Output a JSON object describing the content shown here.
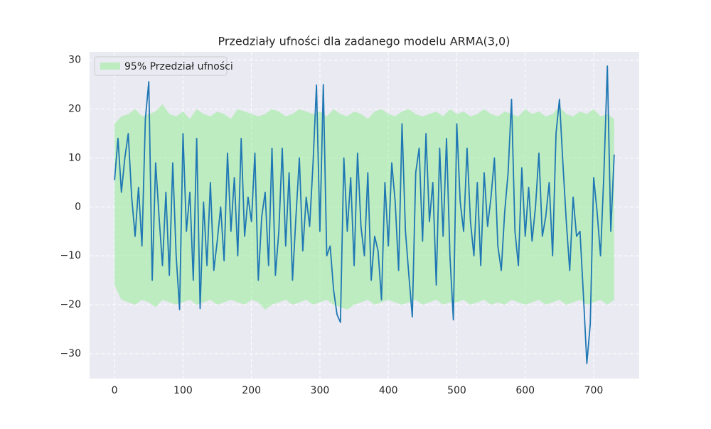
{
  "chart_data": {
    "type": "line",
    "title": "Przedziały ufności dla zadanego modelu ARMA(3,0)",
    "x": [
      0,
      5,
      10,
      15,
      20,
      25,
      30,
      35,
      40,
      45,
      50,
      55,
      60,
      65,
      70,
      75,
      80,
      85,
      90,
      95,
      100,
      105,
      110,
      115,
      120,
      125,
      130,
      135,
      140,
      145,
      150,
      155,
      160,
      165,
      170,
      175,
      180,
      185,
      190,
      195,
      200,
      205,
      210,
      215,
      220,
      225,
      230,
      235,
      240,
      245,
      250,
      255,
      260,
      265,
      270,
      275,
      280,
      285,
      290,
      295,
      300,
      305,
      310,
      315,
      320,
      325,
      330,
      335,
      340,
      345,
      350,
      355,
      360,
      365,
      370,
      375,
      380,
      385,
      390,
      395,
      400,
      405,
      410,
      415,
      420,
      425,
      430,
      435,
      440,
      445,
      450,
      455,
      460,
      465,
      470,
      475,
      480,
      485,
      490,
      495,
      500,
      505,
      510,
      515,
      520,
      525,
      530,
      535,
      540,
      545,
      550,
      555,
      560,
      565,
      570,
      575,
      580,
      585,
      590,
      595,
      600,
      605,
      610,
      615,
      620,
      625,
      630,
      635,
      640,
      645,
      650,
      655,
      660,
      665,
      670,
      675,
      680,
      685,
      690,
      695,
      700,
      705,
      710,
      715,
      720,
      725,
      730
    ],
    "values": [
      5.5,
      14,
      3,
      10,
      15,
      2,
      -6,
      4,
      -8,
      18,
      25.6,
      -15,
      9,
      -2,
      -12,
      3,
      -14,
      9,
      -10,
      -21,
      15,
      -5,
      3,
      -15,
      14,
      -20.8,
      1,
      -12,
      5,
      -13,
      -7,
      0,
      -11,
      11,
      -5,
      6,
      -10,
      14,
      -6,
      2,
      -3,
      11,
      -15,
      -2,
      3,
      -12,
      12,
      -14,
      -5,
      12,
      -8,
      7,
      -15,
      -2,
      10,
      -9,
      2,
      -4,
      9,
      24.9,
      -5,
      25,
      -10,
      -8,
      -17,
      -22,
      -23.6,
      10,
      -5,
      6,
      -12,
      11,
      -4,
      -10,
      7,
      -15,
      -6,
      -9,
      -19,
      5,
      -8,
      9,
      1,
      -13,
      17,
      -5,
      -14,
      -22.5,
      7,
      12,
      -7,
      15,
      -3,
      5,
      -16,
      12,
      -6,
      14,
      -10,
      -23.1,
      17,
      1,
      -5,
      12,
      -3,
      -10,
      5,
      -12,
      7,
      -4,
      2,
      10,
      -8,
      -13,
      -1,
      7,
      22,
      -5,
      -12,
      8,
      -6,
      4,
      -7,
      0,
      11,
      -6,
      -2,
      5,
      -10,
      15,
      22,
      9,
      -3,
      -13,
      2,
      -6,
      -5,
      -18,
      -32,
      -24,
      6,
      -1,
      -10,
      7,
      28.8,
      -5,
      10.7
    ],
    "color": "#1f77b4",
    "band": {
      "name": "95% Przedział ufności",
      "color": "#90ee90",
      "x": [
        0,
        10,
        20,
        30,
        40,
        50,
        60,
        70,
        80,
        90,
        100,
        110,
        120,
        130,
        140,
        150,
        160,
        170,
        180,
        190,
        200,
        210,
        220,
        230,
        240,
        250,
        260,
        270,
        280,
        290,
        300,
        310,
        320,
        330,
        340,
        350,
        360,
        370,
        380,
        390,
        400,
        410,
        420,
        430,
        440,
        450,
        460,
        470,
        480,
        490,
        500,
        510,
        520,
        530,
        540,
        550,
        560,
        570,
        580,
        590,
        600,
        610,
        620,
        630,
        640,
        650,
        660,
        670,
        680,
        690,
        700,
        710,
        720,
        730
      ],
      "upper": [
        17,
        18.5,
        19,
        20,
        18.5,
        19,
        19.5,
        21,
        19,
        18.5,
        19.5,
        18,
        20,
        19,
        18.5,
        19.5,
        19,
        18,
        20,
        19.5,
        19,
        18.5,
        19,
        20,
        19.5,
        18.5,
        19,
        20,
        19.5,
        19,
        19.5,
        18.5,
        20,
        19,
        18.5,
        19.5,
        19,
        18,
        19.5,
        20,
        19,
        18.5,
        19.5,
        20,
        19,
        18.5,
        19,
        19.5,
        18.5,
        20,
        19,
        19.5,
        18.5,
        19,
        20,
        19,
        18.5,
        19.5,
        19,
        18.5,
        20,
        19,
        19.5,
        18.5,
        19,
        20.5,
        19,
        18.5,
        19.5,
        19,
        20,
        18.5,
        19,
        18
      ],
      "lower": [
        -16,
        -19,
        -19.5,
        -20,
        -19,
        -19.5,
        -20.5,
        -19,
        -19.5,
        -20,
        -19.5,
        -19,
        -20,
        -19.5,
        -19,
        -20,
        -19.5,
        -19,
        -19.5,
        -20,
        -19,
        -19.5,
        -21,
        -20,
        -19.5,
        -19,
        -20,
        -19.5,
        -19,
        -20,
        -19.5,
        -19,
        -20,
        -20.5,
        -21,
        -20,
        -19.5,
        -19,
        -20,
        -19.5,
        -19,
        -19.5,
        -20,
        -19.5,
        -19,
        -20,
        -19.5,
        -19,
        -20,
        -19.5,
        -19.5,
        -19,
        -20,
        -19.5,
        -19,
        -20,
        -19.5,
        -20,
        -19,
        -19.5,
        -20,
        -19.5,
        -19,
        -20,
        -19.5,
        -19,
        -20,
        -19.5,
        -19,
        -20,
        -19.5,
        -19,
        -20,
        -19
      ]
    },
    "xlim": [
      -36.5,
      766.5
    ],
    "ylim": [
      -35.1,
      31.7
    ],
    "xticks": [
      0,
      100,
      200,
      300,
      400,
      500,
      600,
      700
    ],
    "yticks": [
      {
        "value": -30,
        "label": "−30"
      },
      {
        "value": -20,
        "label": "−20"
      },
      {
        "value": -10,
        "label": "−10"
      },
      0,
      10,
      20,
      30
    ],
    "grid": true,
    "legend": "upper left"
  }
}
